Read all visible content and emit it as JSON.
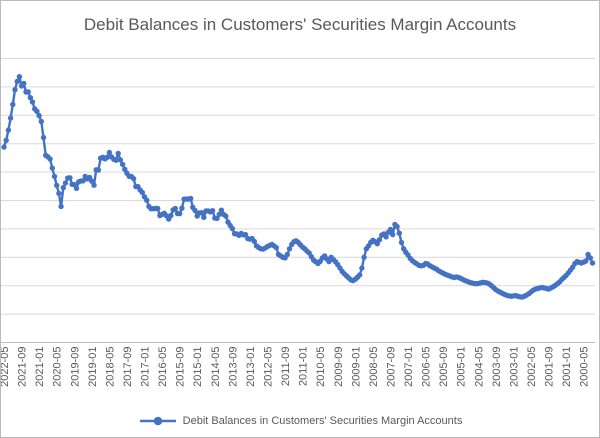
{
  "window": {
    "background": "#ffffff",
    "border_color": "#b9b9b9"
  },
  "chart": {
    "title": "Debit Balances in Customers' Securities Margin Accounts",
    "title_color": "#595959",
    "gridline_color": "#d9d9d9",
    "axis_line_color": "#bfbfbf",
    "tick_label_color": "#595959",
    "series_color": "#4472C4",
    "legend": {
      "label": "Debit Balances in Customers' Securities Margin Accounts",
      "marker": "line-with-circle",
      "color": "#4472C4",
      "position": "bottom"
    }
  },
  "chart_data": {
    "type": "line",
    "title": "Debit Balances in Customers' Securities Margin Accounts",
    "x_unit": "month",
    "x_direction": "newest-to-oldest-left-to-right",
    "x_start": "2022-05",
    "x_end": "2000-01",
    "x_tick_interval_months": 8,
    "x_tick_labels": [
      "2022-05",
      "2021-09",
      "2021-01",
      "2020-05",
      "2019-09",
      "2019-01",
      "2018-05",
      "2017-09",
      "2017-01",
      "2016-05",
      "2015-09",
      "2015-01",
      "2014-05",
      "2013-09",
      "2013-01",
      "2012-05",
      "2011-09",
      "2011-01",
      "2010-05",
      "2009-09",
      "2009-01",
      "2008-05",
      "2007-09",
      "2007-01",
      "2006-05",
      "2005-09",
      "2005-01",
      "2004-05",
      "2003-09",
      "2003-01",
      "2002-05",
      "2001-09",
      "2001-01",
      "2000-05"
    ],
    "x_tick_label_rotation_deg": -90,
    "ylabel": "",
    "y_unit": "$ millions (estimated, y-axis labels not visible in image)",
    "ylim": [
      0,
      1000000
    ],
    "y_major_gridline_step": 100000,
    "y_axis_labels_visible": false,
    "grid": "horizontal",
    "legend_position": "bottom",
    "marker": "circle",
    "series": [
      {
        "name": "Debit Balances in Customers' Securities Margin Accounts",
        "color": "#4472C4",
        "values": [
          688000,
          712000,
          748000,
          790000,
          838000,
          890000,
          919000,
          936000,
          903000,
          912000,
          882000,
          882000,
          862000,
          847000,
          823000,
          814000,
          799000,
          778000,
          722000,
          659000,
          654000,
          646000,
          614000,
          585000,
          553000,
          525000,
          479000,
          545000,
          562000,
          579000,
          580000,
          557000,
          556000,
          543000,
          566000,
          569000,
          569000,
          585000,
          576000,
          581000,
          568000,
          554000,
          608000,
          607000,
          649000,
          652000,
          647000,
          652000,
          669000,
          653000,
          645000,
          642000,
          666000,
          643000,
          627000,
          610000,
          596000,
          585000,
          585000,
          577000,
          549000,
          549000,
          537000,
          528000,
          513000,
          501000,
          479000,
          471000,
          471000,
          472000,
          472000,
          447000,
          451000,
          455000,
          446000,
          435000,
          447000,
          467000,
          472000,
          454000,
          454000,
          473000,
          505000,
          505000,
          505000,
          507000,
          476000,
          465000,
          445000,
          456000,
          457000,
          441000,
          463000,
          463000,
          460000,
          464000,
          438000,
          437000,
          451000,
          466000,
          451000,
          445000,
          424000,
          412000,
          401000,
          383000,
          382000,
          377000,
          384000,
          379000,
          380000,
          366000,
          364000,
          366000,
          356000,
          340000,
          334000,
          330000,
          329000,
          333000,
          338000,
          342000,
          345000,
          340000,
          334000,
          310000,
          305000,
          300000,
          298000,
          310000,
          330000,
          345000,
          355000,
          358000,
          352000,
          344000,
          336000,
          330000,
          322000,
          315000,
          302000,
          290000,
          284000,
          278000,
          286000,
          298000,
          305000,
          294000,
          285000,
          300000,
          292000,
          284000,
          274000,
          262000,
          250000,
          242000,
          234000,
          227000,
          220000,
          218000,
          223000,
          230000,
          238000,
          262000,
          300000,
          330000,
          340000,
          352000,
          360000,
          355000,
          348000,
          362000,
          378000,
          382000,
          372000,
          388000,
          398000,
          380000,
          416000,
          408000,
          385000,
          352000,
          330000,
          318000,
          308000,
          296000,
          288000,
          282000,
          277000,
          272000,
          270000,
          272000,
          278000,
          276000,
          270000,
          266000,
          262000,
          258000,
          252000,
          248000,
          244000,
          240000,
          237000,
          234000,
          231000,
          229000,
          231000,
          229000,
          226000,
          222000,
          218000,
          215000,
          212000,
          210000,
          208000,
          207000,
          208000,
          210000,
          212000,
          211000,
          210000,
          206000,
          200000,
          193000,
          186000,
          181000,
          177000,
          173000,
          169000,
          166000,
          164000,
          163000,
          164000,
          165000,
          163000,
          161000,
          160000,
          163000,
          167000,
          172000,
          178000,
          184000,
          188000,
          190000,
          192000,
          194000,
          192000,
          190000,
          188000,
          192000,
          196000,
          201000,
          207000,
          213000,
          222000,
          229000,
          236000,
          245000,
          255000,
          265000,
          278000,
          285000,
          282000,
          280000,
          283000,
          287000,
          310000,
          298000,
          280000
        ]
      }
    ]
  }
}
